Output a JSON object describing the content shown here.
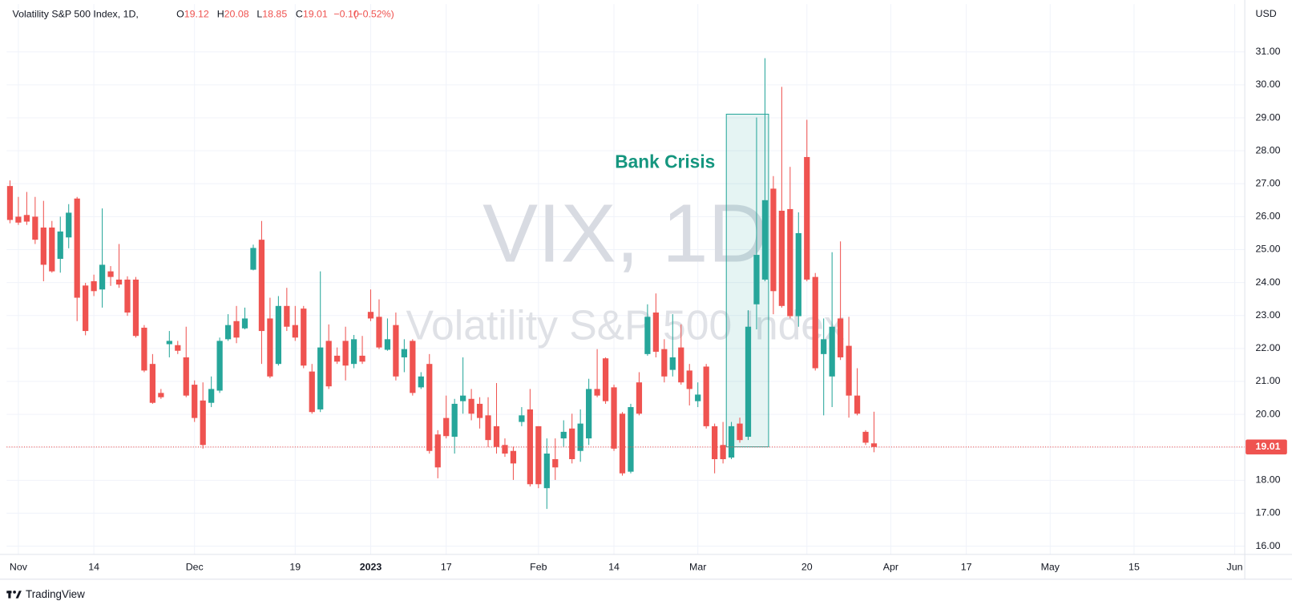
{
  "header": {
    "symbol": "Volatility S&P 500 Index, 1D,",
    "open_label": "O",
    "high_label": "H",
    "low_label": "L",
    "close_label": "C",
    "change": "−0.10",
    "change_pct": "(−0.52%)"
  },
  "watermark": {
    "symbol": "VIX, 1D",
    "name": "Volatility S&P 500 Index"
  },
  "footer": {
    "brand": "TradingView"
  },
  "chart_data": {
    "type": "candlestick",
    "currency": "USD",
    "up_color": "#26a69a",
    "down_color": "#ef5350",
    "grid": true,
    "annotation": "Bank Crisis",
    "open": [
      26.93,
      26.0,
      26.05,
      26.0,
      25.67,
      25.67,
      24.72,
      25.37,
      26.55,
      23.91,
      24.04,
      23.79,
      24.34,
      24.09,
      24.09,
      24.09,
      22.63,
      21.53,
      20.65,
      22.13,
      22.1,
      21.73,
      20.9,
      20.42,
      20.35,
      20.72,
      22.28,
      22.83,
      22.61,
      24.39,
      25.3,
      22.91,
      21.53,
      23.29,
      22.71,
      23.21,
      21.3,
      20.15,
      22.23,
      21.78,
      22.23,
      21.53,
      21.78,
      23.11,
      22.96,
      21.96,
      22.71,
      21.73,
      22.23,
      20.82,
      21.53,
      19.39,
      19.89,
      19.32,
      20.4,
      20.47,
      20.32,
      19.97,
      19.64,
      19.07,
      18.89,
      19.77,
      20.15,
      19.64,
      17.76,
      18.64,
      19.27,
      19.57,
      18.89,
      19.27,
      20.77,
      21.7,
      20.82,
      20.02,
      18.26,
      20.97,
      21.83,
      23.09,
      21.98,
      21.35,
      22.03,
      21.33,
      20.4,
      21.45,
      19.64,
      19.07,
      18.69,
      19.72,
      19.32,
      23.34,
      24.09,
      26.85,
      26.18,
      26.23,
      22.98,
      27.81,
      24.17,
      21.83,
      21.15,
      22.91,
      22.08,
      20.57,
      19.47,
      19.12
    ],
    "high": [
      27.1,
      26.6,
      26.75,
      26.6,
      26.48,
      25.87,
      26.0,
      26.38,
      26.6,
      23.99,
      24.24,
      26.25,
      24.5,
      25.17,
      24.19,
      24.17,
      22.71,
      21.83,
      20.77,
      22.53,
      22.23,
      22.66,
      21.03,
      20.97,
      21.15,
      22.33,
      23.04,
      23.29,
      23.24,
      25.15,
      25.87,
      23.54,
      23.59,
      23.84,
      23.29,
      23.29,
      21.53,
      24.34,
      22.73,
      22.03,
      22.66,
      22.41,
      22.38,
      23.79,
      23.49,
      22.91,
      23.09,
      22.28,
      22.28,
      21.28,
      21.83,
      19.52,
      20.57,
      20.47,
      21.73,
      20.77,
      20.52,
      20.52,
      20.95,
      19.27,
      19.02,
      20.22,
      20.77,
      19.64,
      19.27,
      19.27,
      19.82,
      20.02,
      20.15,
      21.08,
      21.98,
      21.73,
      20.9,
      20.07,
      20.32,
      21.28,
      23.34,
      23.67,
      22.28,
      23.04,
      22.73,
      21.53,
      20.97,
      21.53,
      19.72,
      19.77,
      19.77,
      19.9,
      23.16,
      29.01,
      30.81,
      27.23,
      29.94,
      27.51,
      26.13,
      28.94,
      24.29,
      22.91,
      24.92,
      25.25,
      22.96,
      21.4,
      19.52,
      20.08
    ],
    "low": [
      25.8,
      25.75,
      25.75,
      25.17,
      24.04,
      24.3,
      24.3,
      25.04,
      22.83,
      22.4,
      23.59,
      23.24,
      23.9,
      23.84,
      22.99,
      22.33,
      21.28,
      20.32,
      20.47,
      21.73,
      21.83,
      20.52,
      19.77,
      18.96,
      20.22,
      20.65,
      22.23,
      22.16,
      22.58,
      24.37,
      21.53,
      21.1,
      21.48,
      22.53,
      22.23,
      21.4,
      20.02,
      20.07,
      20.77,
      21.53,
      21.03,
      21.4,
      21.53,
      22.83,
      21.98,
      21.93,
      21.03,
      21.28,
      20.57,
      20.77,
      18.81,
      18.06,
      19.27,
      18.81,
      20.02,
      19.82,
      19.57,
      19.01,
      18.81,
      18.71,
      18.01,
      19.64,
      17.81,
      17.76,
      17.13,
      18.01,
      19.01,
      18.51,
      18.56,
      19.07,
      20.52,
      20.32,
      18.89,
      18.14,
      18.21,
      19.97,
      21.78,
      21.73,
      20.97,
      21.15,
      20.9,
      20.27,
      20.22,
      19.57,
      18.21,
      18.51,
      18.64,
      19.14,
      19.22,
      22.58,
      24.04,
      23.04,
      23.24,
      22.91,
      22.66,
      24.04,
      21.33,
      19.97,
      20.22,
      21.65,
      19.9,
      19.97,
      19.07,
      18.85
    ],
    "close": [
      25.9,
      25.82,
      25.85,
      25.3,
      24.54,
      24.34,
      25.55,
      26.12,
      23.54,
      22.53,
      23.74,
      24.54,
      24.17,
      23.94,
      23.09,
      22.38,
      21.33,
      20.35,
      20.52,
      22.23,
      21.93,
      20.57,
      19.89,
      19.07,
      20.77,
      22.23,
      22.71,
      22.33,
      22.91,
      25.05,
      22.53,
      21.15,
      23.29,
      22.66,
      22.33,
      21.48,
      20.07,
      22.03,
      20.85,
      21.6,
      21.48,
      22.28,
      21.6,
      22.91,
      22.03,
      22.28,
      21.15,
      21.98,
      20.65,
      21.15,
      18.89,
      18.39,
      19.34,
      20.32,
      20.57,
      20.02,
      19.89,
      19.22,
      19.01,
      18.81,
      18.51,
      19.97,
      17.88,
      17.88,
      18.81,
      18.39,
      19.47,
      18.64,
      19.72,
      20.77,
      20.57,
      20.4,
      18.96,
      18.21,
      20.22,
      20.02,
      22.96,
      21.9,
      21.15,
      21.73,
      20.97,
      20.77,
      20.6,
      19.64,
      18.64,
      18.64,
      19.64,
      19.22,
      22.66,
      24.84,
      26.5,
      23.74,
      23.29,
      22.98,
      25.5,
      24.09,
      21.4,
      22.28,
      22.66,
      21.73,
      20.57,
      20.02,
      19.14,
      19.01
    ],
    "xlim": [
      -0.4,
      147.2
    ],
    "xticks": [
      {
        "value": 1,
        "label": "Nov"
      },
      {
        "value": 10,
        "label": "14"
      },
      {
        "value": 22,
        "label": "Dec"
      },
      {
        "value": 34,
        "label": "19"
      },
      {
        "value": 43,
        "label": "2023"
      },
      {
        "value": 52,
        "label": "17"
      },
      {
        "value": 63,
        "label": "Feb"
      },
      {
        "value": 72,
        "label": "14"
      },
      {
        "value": 82,
        "label": "Mar"
      },
      {
        "value": 95,
        "label": "20"
      },
      {
        "value": 105,
        "label": "Apr"
      },
      {
        "value": 114,
        "label": "17"
      },
      {
        "value": 124,
        "label": "May"
      },
      {
        "value": 134,
        "label": "15"
      },
      {
        "value": 146,
        "label": "Jun"
      }
    ],
    "ylim": [
      15.75,
      32.45
    ],
    "yticks": [
      {
        "value": 16,
        "label": "16.00"
      },
      {
        "value": 17,
        "label": "17.00"
      },
      {
        "value": 18,
        "label": "18.00"
      },
      {
        "value": 19,
        "label": "19.00"
      },
      {
        "value": 20,
        "label": "20.00"
      },
      {
        "value": 21,
        "label": "21.00"
      },
      {
        "value": 22,
        "label": "22.00"
      },
      {
        "value": 23,
        "label": "23.00"
      },
      {
        "value": 24,
        "label": "24.00"
      },
      {
        "value": 25,
        "label": "25.00"
      },
      {
        "value": 26,
        "label": "26.00"
      },
      {
        "value": 27,
        "label": "27.00"
      },
      {
        "value": 28,
        "label": "28.00"
      },
      {
        "value": 29,
        "label": "29.00"
      },
      {
        "value": 30,
        "label": "30.00"
      },
      {
        "value": 31,
        "label": "31.00"
      }
    ]
  }
}
